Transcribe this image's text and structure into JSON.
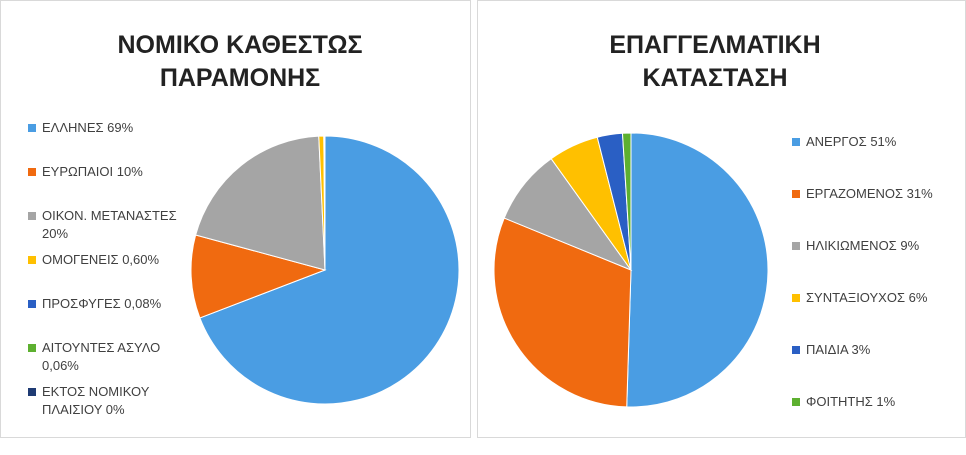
{
  "chart_data": [
    {
      "type": "pie",
      "title": "ΝΟΜΙΚΟ ΚΑΘΕΣΤΩΣ ΠΑΡΑΜΟΝΗΣ",
      "categories": [
        "ΕΛΛΗΝΕΣ 69%",
        "ΕΥΡΩΠΑΙΟΙ 10%",
        "ΟΙΚΟΝ. ΜΕΤΑΝΑΣΤΕΣ 20%",
        "ΟΜΟΓΕΝΕΙΣ 0,60%",
        "ΠΡΟΣΦΥΓΕΣ 0,08%",
        "ΑΙΤΟΥΝΤΕΣ ΑΣΥΛΟ 0,06%",
        "ΕΚΤΟΣ ΝΟΜΙΚΟΥ ΠΛΑΙΣΙΟΥ 0%"
      ],
      "values": [
        69,
        10,
        20,
        0.6,
        0.08,
        0.06,
        0
      ],
      "colors": [
        "#4a9de3",
        "#f06a10",
        "#a5a5a5",
        "#ffc000",
        "#2a5fc4",
        "#5db030",
        "#1f3b73"
      ],
      "legend": "left"
    },
    {
      "type": "pie",
      "title": "ΕΠΑΓΓΕΛΜΑΤΙΚΗ ΚΑΤΑΣΤΑΣΗ",
      "categories": [
        "ΑΝΕΡΓΟΣ 51%",
        "ΕΡΓΑΖΟΜΕΝΟΣ 31%",
        "ΗΛΙΚΙΩΜΕΝΟΣ 9%",
        "ΣΥΝΤΑΞΙΟΥΧΟΣ 6%",
        "ΠΑΙΔΙΑ 3%",
        "ΦΟΙΤΗΤΗΣ 1%"
      ],
      "values": [
        51,
        31,
        9,
        6,
        3,
        1
      ],
      "colors": [
        "#4a9de3",
        "#f06a10",
        "#a5a5a5",
        "#ffc000",
        "#2a5fc4",
        "#5db030"
      ],
      "legend": "right"
    }
  ]
}
